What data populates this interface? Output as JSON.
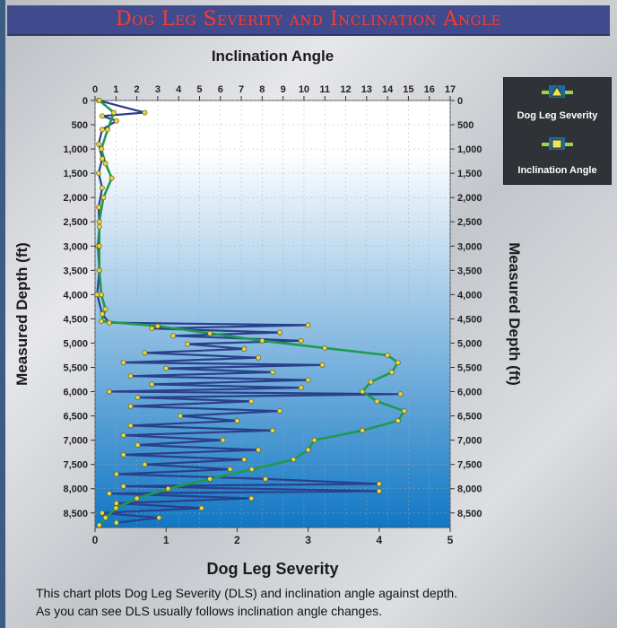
{
  "title": "Dog Leg Severity and Inclination Angle",
  "caption_lines": [
    "This chart plots Dog Leg Severity (DLS) and inclination angle against depth.",
    "As you can see DLS usually follows inclination angle changes."
  ],
  "legend": {
    "dls_label": "Dog Leg Severity",
    "inc_label": "Inclination Angle"
  },
  "chart_data": {
    "type": "line",
    "title": "Dog Leg Severity and Inclination Angle",
    "top_axis_label": "Inclination Angle",
    "bottom_axis_label": "Dog Leg Severity",
    "left_axis_label": "Measured Depth (ft)",
    "right_axis_label": "Measured Depth (ft)",
    "inclination_range": [
      0,
      17
    ],
    "dls_range": [
      0,
      5
    ],
    "depth_range": [
      0,
      8800
    ],
    "depth_ticks": [
      "0",
      "500",
      "1,000",
      "1,500",
      "2,000",
      "2,500",
      "3,000",
      "3,500",
      "4,000",
      "4,500",
      "5,000",
      "5,500",
      "6,000",
      "6,500",
      "7,000",
      "7,500",
      "8,000",
      "8,500"
    ],
    "inclination_ticks": [
      "0",
      "1",
      "2",
      "3",
      "4",
      "5",
      "6",
      "7",
      "8",
      "9",
      "10",
      "11",
      "12",
      "13",
      "14",
      "15",
      "16",
      "17"
    ],
    "dls_ticks": [
      "0",
      "1",
      "2",
      "3",
      "4",
      "5"
    ],
    "grid": true,
    "colors": {
      "dls_line": "#2b3f8a",
      "inclination_line": "#1f9a4d",
      "marker": "#e8d44a",
      "plot_top": "#ffffff",
      "plot_bottom": "#1177c4"
    },
    "series": [
      {
        "name": "Dog Leg Severity",
        "axis": "bottom",
        "points": [
          {
            "depth": 0,
            "value": 0.05
          },
          {
            "depth": 250,
            "value": 0.7
          },
          {
            "depth": 320,
            "value": 0.1
          },
          {
            "depth": 420,
            "value": 0.3
          },
          {
            "depth": 600,
            "value": 0.1
          },
          {
            "depth": 900,
            "value": 0.05
          },
          {
            "depth": 1200,
            "value": 0.1
          },
          {
            "depth": 1500,
            "value": 0.05
          },
          {
            "depth": 1800,
            "value": 0.1
          },
          {
            "depth": 2200,
            "value": 0.05
          },
          {
            "depth": 2600,
            "value": 0.06
          },
          {
            "depth": 3000,
            "value": 0.04
          },
          {
            "depth": 3500,
            "value": 0.06
          },
          {
            "depth": 4000,
            "value": 0.03
          },
          {
            "depth": 4400,
            "value": 0.1
          },
          {
            "depth": 4580,
            "value": 0.2
          },
          {
            "depth": 4630,
            "value": 3.0
          },
          {
            "depth": 4700,
            "value": 0.8
          },
          {
            "depth": 4780,
            "value": 2.6
          },
          {
            "depth": 4850,
            "value": 1.1
          },
          {
            "depth": 4950,
            "value": 2.9
          },
          {
            "depth": 5020,
            "value": 1.3
          },
          {
            "depth": 5120,
            "value": 2.1
          },
          {
            "depth": 5200,
            "value": 0.7
          },
          {
            "depth": 5300,
            "value": 2.3
          },
          {
            "depth": 5400,
            "value": 0.4
          },
          {
            "depth": 5450,
            "value": 3.2
          },
          {
            "depth": 5520,
            "value": 1.0
          },
          {
            "depth": 5600,
            "value": 2.5
          },
          {
            "depth": 5680,
            "value": 0.5
          },
          {
            "depth": 5760,
            "value": 3.0
          },
          {
            "depth": 5850,
            "value": 0.8
          },
          {
            "depth": 5920,
            "value": 2.9
          },
          {
            "depth": 6000,
            "value": 0.2
          },
          {
            "depth": 6050,
            "value": 4.3
          },
          {
            "depth": 6120,
            "value": 0.6
          },
          {
            "depth": 6200,
            "value": 2.2
          },
          {
            "depth": 6300,
            "value": 0.5
          },
          {
            "depth": 6400,
            "value": 2.6
          },
          {
            "depth": 6500,
            "value": 1.2
          },
          {
            "depth": 6600,
            "value": 2.0
          },
          {
            "depth": 6700,
            "value": 0.5
          },
          {
            "depth": 6800,
            "value": 2.5
          },
          {
            "depth": 6900,
            "value": 0.4
          },
          {
            "depth": 7000,
            "value": 1.8
          },
          {
            "depth": 7100,
            "value": 0.6
          },
          {
            "depth": 7200,
            "value": 2.3
          },
          {
            "depth": 7300,
            "value": 0.4
          },
          {
            "depth": 7400,
            "value": 2.1
          },
          {
            "depth": 7500,
            "value": 0.7
          },
          {
            "depth": 7600,
            "value": 1.9
          },
          {
            "depth": 7700,
            "value": 0.3
          },
          {
            "depth": 7800,
            "value": 2.4
          },
          {
            "depth": 7900,
            "value": 4.0
          },
          {
            "depth": 7950,
            "value": 0.4
          },
          {
            "depth": 8050,
            "value": 4.0
          },
          {
            "depth": 8100,
            "value": 0.2
          },
          {
            "depth": 8200,
            "value": 2.2
          },
          {
            "depth": 8300,
            "value": 0.3
          },
          {
            "depth": 8400,
            "value": 1.5
          },
          {
            "depth": 8500,
            "value": 0.1
          },
          {
            "depth": 8600,
            "value": 0.9
          },
          {
            "depth": 8700,
            "value": 0.3
          }
        ]
      },
      {
        "name": "Inclination Angle",
        "axis": "top",
        "points": [
          {
            "depth": 0,
            "value": 0.2
          },
          {
            "depth": 250,
            "value": 0.9
          },
          {
            "depth": 600,
            "value": 0.6
          },
          {
            "depth": 1000,
            "value": 0.3
          },
          {
            "depth": 1300,
            "value": 0.5
          },
          {
            "depth": 1600,
            "value": 0.8
          },
          {
            "depth": 2000,
            "value": 0.4
          },
          {
            "depth": 2500,
            "value": 0.2
          },
          {
            "depth": 3000,
            "value": 0.2
          },
          {
            "depth": 3500,
            "value": 0.2
          },
          {
            "depth": 4000,
            "value": 0.3
          },
          {
            "depth": 4300,
            "value": 0.5
          },
          {
            "depth": 4550,
            "value": 0.3
          },
          {
            "depth": 4650,
            "value": 3.0
          },
          {
            "depth": 4800,
            "value": 5.5
          },
          {
            "depth": 4950,
            "value": 8.0
          },
          {
            "depth": 5100,
            "value": 11.0
          },
          {
            "depth": 5250,
            "value": 14.0
          },
          {
            "depth": 5400,
            "value": 14.5
          },
          {
            "depth": 5600,
            "value": 14.2
          },
          {
            "depth": 5800,
            "value": 13.2
          },
          {
            "depth": 6000,
            "value": 12.8
          },
          {
            "depth": 6200,
            "value": 13.5
          },
          {
            "depth": 6400,
            "value": 14.8
          },
          {
            "depth": 6600,
            "value": 14.5
          },
          {
            "depth": 6800,
            "value": 12.8
          },
          {
            "depth": 7000,
            "value": 10.5
          },
          {
            "depth": 7200,
            "value": 10.2
          },
          {
            "depth": 7400,
            "value": 9.5
          },
          {
            "depth": 7600,
            "value": 7.5
          },
          {
            "depth": 7800,
            "value": 5.5
          },
          {
            "depth": 8000,
            "value": 3.5
          },
          {
            "depth": 8200,
            "value": 2.0
          },
          {
            "depth": 8400,
            "value": 1.0
          },
          {
            "depth": 8600,
            "value": 0.5
          },
          {
            "depth": 8750,
            "value": 0.2
          }
        ]
      }
    ]
  }
}
